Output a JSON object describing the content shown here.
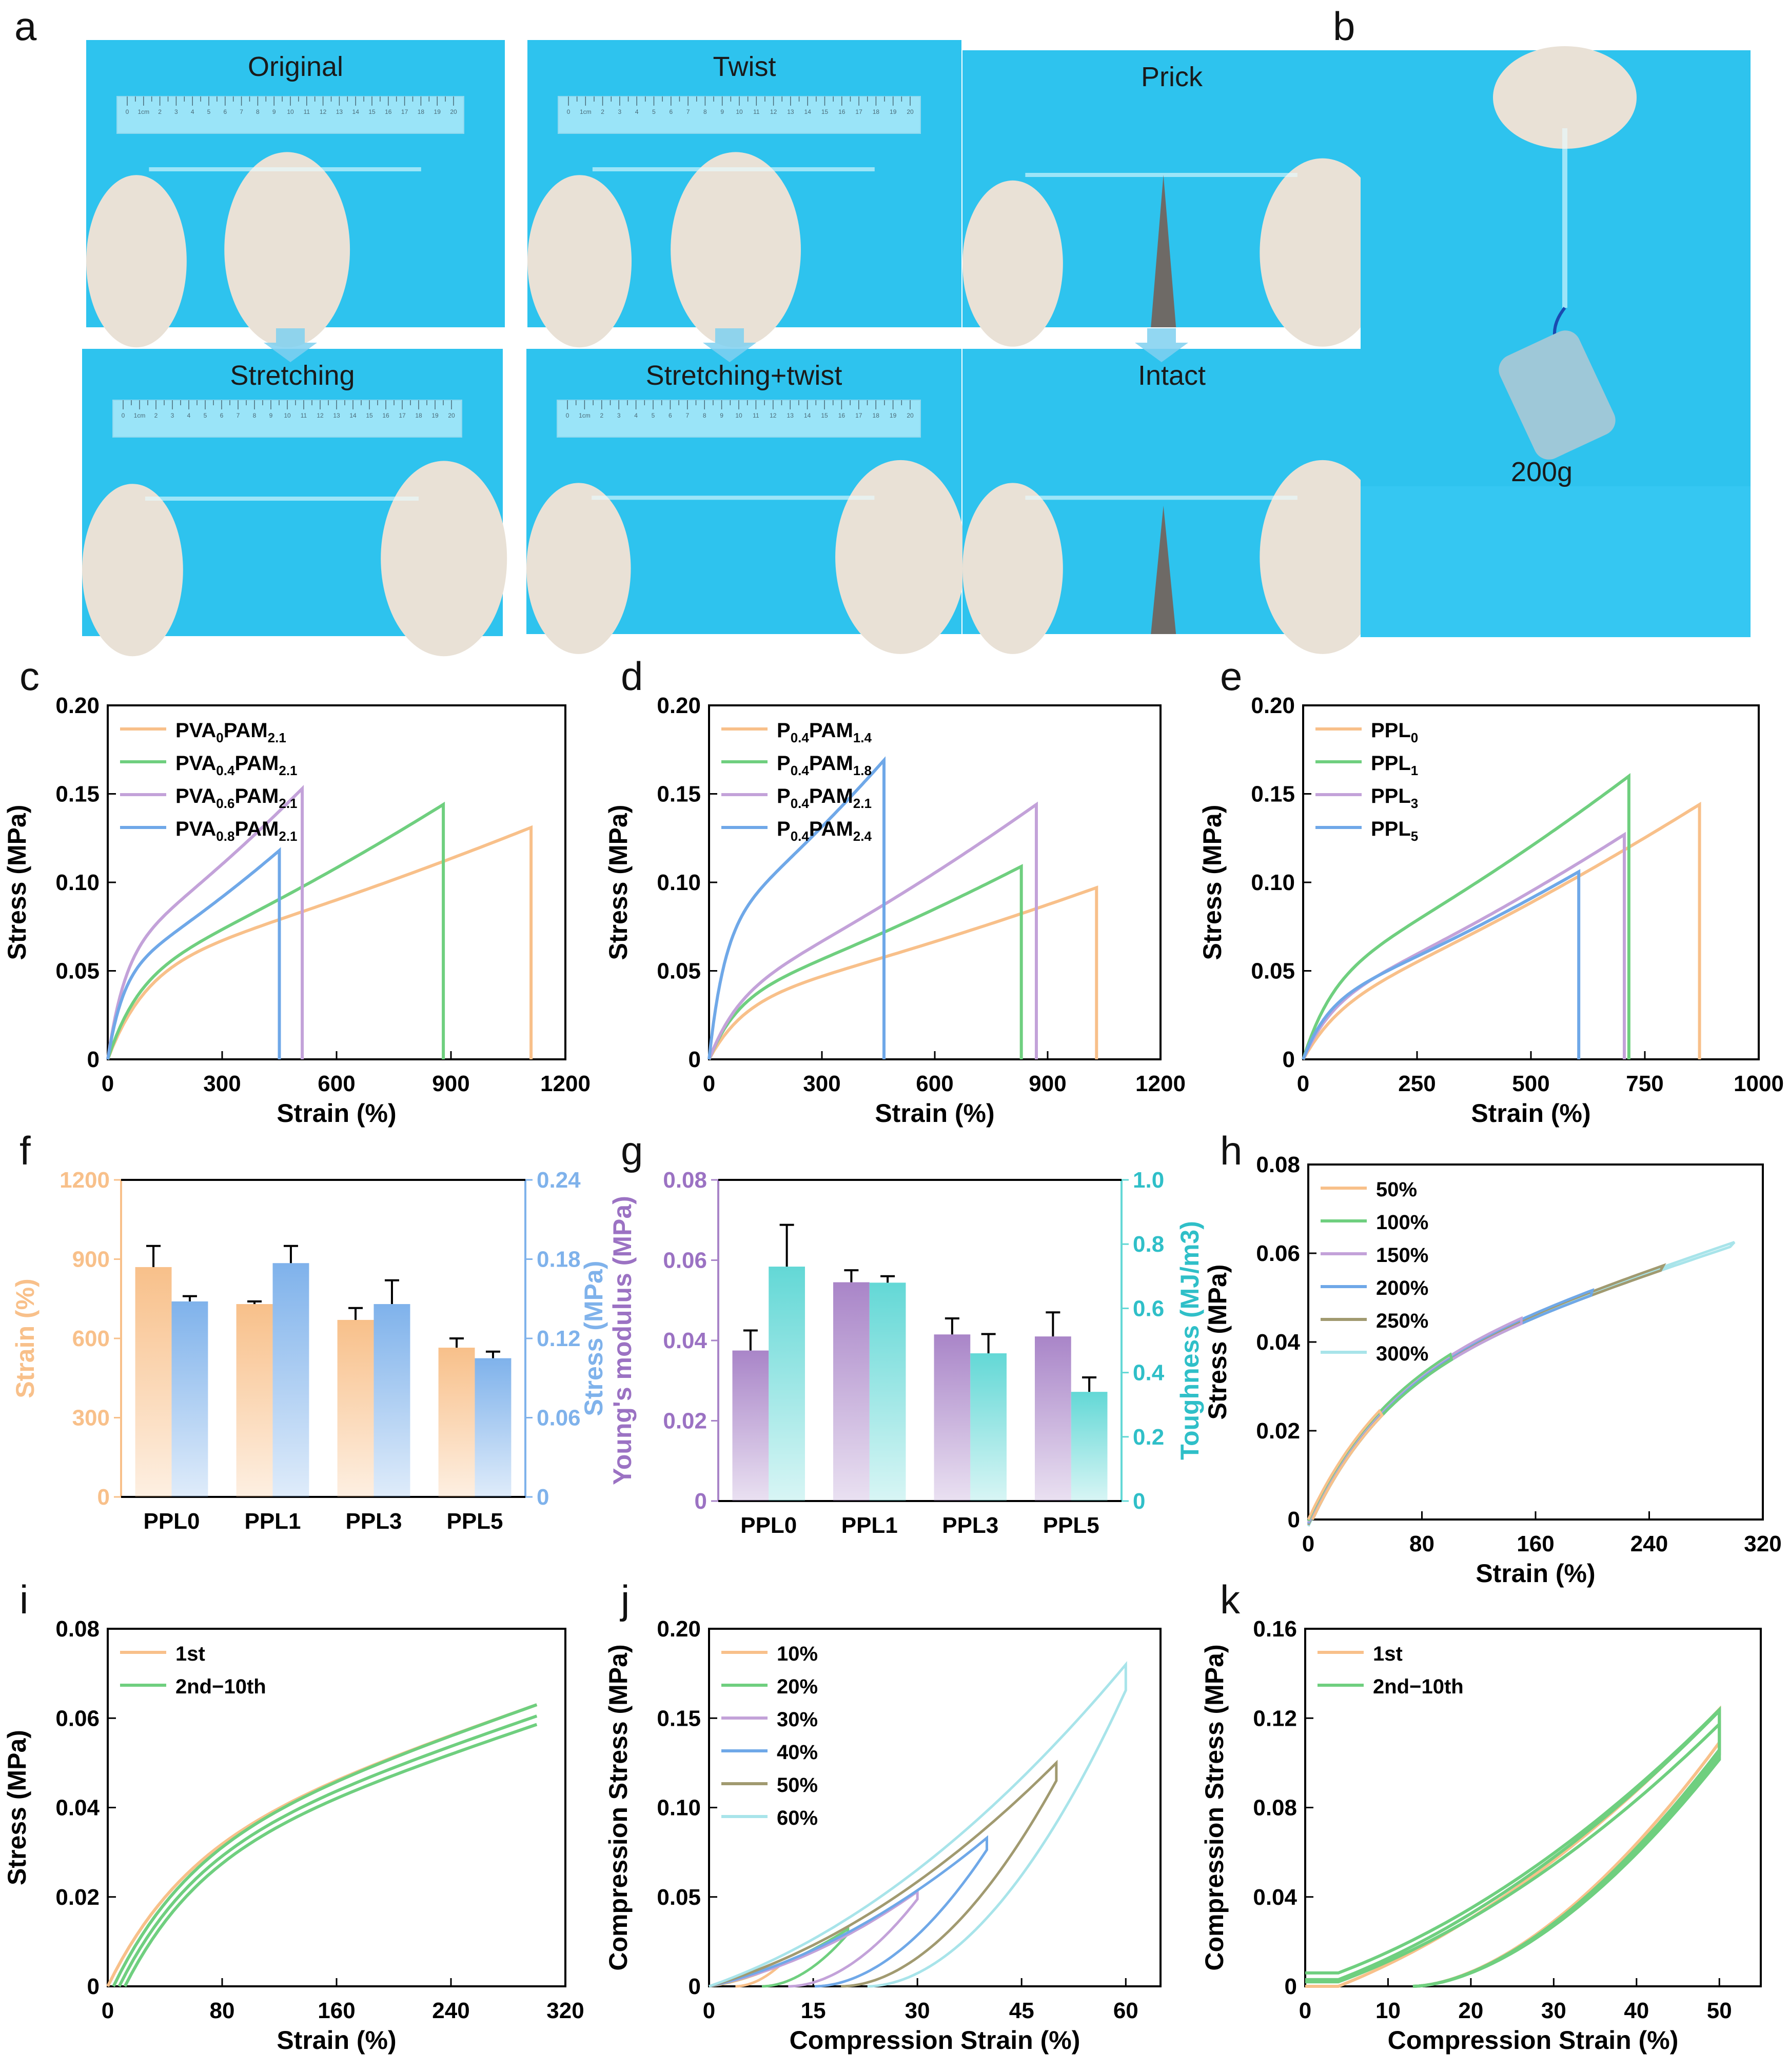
{
  "photos": {
    "label_a": "a",
    "label_b": "b",
    "captions": [
      "Original",
      "Twist",
      "Prick",
      "Stretching",
      "Stretching+twist",
      "Intact"
    ],
    "weight_label": "200g",
    "ruler_numbers": [
      "0",
      "1cm",
      "2",
      "3",
      "4",
      "5",
      "6",
      "7",
      "8",
      "9",
      "10",
      "11",
      "12",
      "13",
      "14",
      "15",
      "16",
      "17",
      "18",
      "19",
      "20"
    ]
  },
  "colors": {
    "orange": "#F8C08A",
    "green": "#6FCF7F",
    "purple": "#C3A2D9",
    "blue": "#6FA8E8",
    "olive": "#A19A70",
    "cyan": "#A8E4EA",
    "bg_blue": "#2EC3EE",
    "glove": "#E9E1D6"
  },
  "chart_data": [
    {
      "id": "c",
      "panel": "c",
      "type": "line",
      "xlabel": "Strain (%)",
      "ylabel": "Stress (MPa)",
      "xlim": [
        0,
        1200
      ],
      "ylim": [
        0,
        0.2
      ],
      "xticks": [
        0,
        300,
        600,
        900,
        1200
      ],
      "yticks": [
        0,
        0.05,
        0.1,
        0.15,
        0.2
      ],
      "ytick_labels": [
        "0",
        "0.05",
        "0.10",
        "0.15",
        "0.20"
      ],
      "legend_position": "top-left",
      "series": [
        {
          "name": "PVA0PAM2.1",
          "legend": [
            "PVA",
            "0",
            "PAM",
            "2.1"
          ],
          "color": "orange",
          "break_strain": 1110,
          "break_stress": 0.131,
          "knee": 0.055
        },
        {
          "name": "PVA0.4PAM2.1",
          "legend": [
            "PVA",
            "0.4",
            "PAM",
            "2.1"
          ],
          "color": "green",
          "break_strain": 880,
          "break_stress": 0.144,
          "knee": 0.05
        },
        {
          "name": "PVA0.6PAM2.1",
          "legend": [
            "PVA",
            "0.6",
            "PAM",
            "2.1"
          ],
          "color": "purple",
          "break_strain": 510,
          "break_stress": 0.153,
          "knee": 0.065
        },
        {
          "name": "PVA0.8PAM2.1",
          "legend": [
            "PVA",
            "0.8",
            "PAM",
            "2.1"
          ],
          "color": "blue",
          "break_strain": 450,
          "break_stress": 0.118,
          "knee": 0.052
        }
      ]
    },
    {
      "id": "d",
      "panel": "d",
      "type": "line",
      "xlabel": "Strain (%)",
      "ylabel": "Stress (MPa)",
      "xlim": [
        0,
        1200
      ],
      "ylim": [
        0,
        0.2
      ],
      "xticks": [
        0,
        300,
        600,
        900,
        1200
      ],
      "yticks": [
        0,
        0.05,
        0.1,
        0.15,
        0.2
      ],
      "ytick_labels": [
        "0",
        "0.05",
        "0.10",
        "0.15",
        "0.20"
      ],
      "legend_position": "top-left",
      "series": [
        {
          "name": "P0.4PAM1.4",
          "legend": [
            "P",
            "0.4",
            "PAM",
            "1.4"
          ],
          "color": "orange",
          "break_strain": 1030,
          "break_stress": 0.097,
          "knee": 0.035
        },
        {
          "name": "P0.4PAM1.8",
          "legend": [
            "P",
            "0.4",
            "PAM",
            "1.8"
          ],
          "color": "green",
          "break_strain": 830,
          "break_stress": 0.109,
          "knee": 0.037
        },
        {
          "name": "P0.4PAM2.1",
          "legend": [
            "P",
            "0.4",
            "PAM",
            "2.1"
          ],
          "color": "purple",
          "break_strain": 870,
          "break_stress": 0.144,
          "knee": 0.04
        },
        {
          "name": "P0.4PAM2.4",
          "legend": [
            "P",
            "0.4",
            "PAM",
            "2.4"
          ],
          "color": "blue",
          "break_strain": 465,
          "break_stress": 0.169,
          "knee": 0.08
        }
      ]
    },
    {
      "id": "e",
      "panel": "e",
      "type": "line",
      "xlabel": "Strain (%)",
      "ylabel": "Stress (MPa)",
      "xlim": [
        0,
        1000
      ],
      "ylim": [
        0,
        0.2
      ],
      "xticks": [
        0,
        250,
        500,
        750,
        1000
      ],
      "yticks": [
        0,
        0.05,
        0.1,
        0.15,
        0.2
      ],
      "ytick_labels": [
        "0",
        "0.05",
        "0.10",
        "0.15",
        "0.20"
      ],
      "legend_position": "top-left",
      "series": [
        {
          "name": "PPL0",
          "legend": [
            "PPL",
            "0",
            "",
            ""
          ],
          "color": "orange",
          "break_strain": 870,
          "break_stress": 0.144,
          "knee": 0.033
        },
        {
          "name": "PPL1",
          "legend": [
            "PPL",
            "1",
            "",
            ""
          ],
          "color": "green",
          "break_strain": 715,
          "break_stress": 0.16,
          "knee": 0.05
        },
        {
          "name": "PPL3",
          "legend": [
            "PPL",
            "3",
            "",
            ""
          ],
          "color": "purple",
          "break_strain": 705,
          "break_stress": 0.127,
          "knee": 0.035
        },
        {
          "name": "PPL5",
          "legend": [
            "PPL",
            "5",
            "",
            ""
          ],
          "color": "blue",
          "break_strain": 605,
          "break_stress": 0.106,
          "knee": 0.035
        }
      ]
    },
    {
      "id": "f",
      "panel": "f",
      "type": "bar",
      "categories": [
        "PPL0",
        "PPL1",
        "PPL3",
        "PPL5"
      ],
      "ylabel": "Strain (%)",
      "y2label": "Stress (MPa)",
      "ylim": [
        0,
        1200
      ],
      "y2lim": [
        0,
        0.24
      ],
      "yticks": [
        0,
        300,
        600,
        900,
        1200
      ],
      "y2ticks": [
        0,
        0.06,
        0.12,
        0.18,
        0.24
      ],
      "ytick_labels": [
        "0",
        "300",
        "600",
        "900",
        "1200"
      ],
      "y2tick_labels": [
        "0",
        "0.06",
        "0.12",
        "0.18",
        "0.24"
      ],
      "left_color": "#F8C08A",
      "right_color": "#7FB2EB",
      "series": [
        {
          "name": "Strain",
          "axis": "left",
          "values": [
            870,
            730,
            670,
            565
          ],
          "errors": [
            80,
            10,
            45,
            35
          ]
        },
        {
          "name": "Stress",
          "axis": "right",
          "values": [
            0.148,
            0.177,
            0.146,
            0.105
          ],
          "errors": [
            0.004,
            0.013,
            0.018,
            0.005
          ]
        }
      ]
    },
    {
      "id": "g",
      "panel": "g",
      "type": "bar",
      "categories": [
        "PPL0",
        "PPL1",
        "PPL3",
        "PPL5"
      ],
      "ylabel": "Young's modulus (MPa)",
      "y2label": "Toughness (MJ/m3)",
      "ylim": [
        0,
        0.08
      ],
      "y2lim": [
        0,
        1.0
      ],
      "yticks": [
        0,
        0.02,
        0.04,
        0.06,
        0.08
      ],
      "y2ticks": [
        0,
        0.2,
        0.4,
        0.6,
        0.8,
        1.0
      ],
      "ytick_labels": [
        "0",
        "0.02",
        "0.04",
        "0.06",
        "0.08"
      ],
      "y2tick_labels": [
        "0",
        "0.2",
        "0.4",
        "0.6",
        "0.8",
        "1.0"
      ],
      "left_color": "#A985C8",
      "right_color": "#63D8D6",
      "left_label_color": "#9B72C3",
      "right_label_color": "#2FBFC8",
      "series": [
        {
          "name": "Young's modulus",
          "axis": "left",
          "values": [
            0.0375,
            0.0545,
            0.0415,
            0.041
          ],
          "errors": [
            0.005,
            0.003,
            0.004,
            0.006
          ]
        },
        {
          "name": "Toughness",
          "axis": "right",
          "values": [
            0.73,
            0.68,
            0.46,
            0.34
          ],
          "errors": [
            0.13,
            0.02,
            0.06,
            0.045
          ]
        }
      ]
    },
    {
      "id": "h",
      "panel": "h",
      "type": "line",
      "xlabel": "Strain (%)",
      "ylabel": "Stress (MPa)",
      "xlim": [
        0,
        320
      ],
      "ylim": [
        0,
        0.08
      ],
      "xticks": [
        0,
        80,
        160,
        240,
        320
      ],
      "yticks": [
        0,
        0.02,
        0.04,
        0.06,
        0.08
      ],
      "ytick_labels": [
        "0",
        "0.02",
        "0.04",
        "0.06",
        "0.08"
      ],
      "legend_position": "top-left",
      "series": [
        {
          "name": "50%",
          "color": "orange",
          "max_strain": 50
        },
        {
          "name": "100%",
          "color": "green",
          "max_strain": 100
        },
        {
          "name": "150%",
          "color": "purple",
          "max_strain": 150
        },
        {
          "name": "200%",
          "color": "blue",
          "max_strain": 200
        },
        {
          "name": "250%",
          "color": "olive",
          "max_strain": 250
        },
        {
          "name": "300%",
          "color": "cyan",
          "max_strain": 300
        }
      ],
      "end_stress": 0.064
    },
    {
      "id": "i",
      "panel": "i",
      "type": "line",
      "xlabel": "Strain (%)",
      "ylabel": "Stress (MPa)",
      "xlim": [
        0,
        320
      ],
      "ylim": [
        0,
        0.08
      ],
      "xticks": [
        0,
        80,
        160,
        240,
        320
      ],
      "yticks": [
        0,
        0.02,
        0.04,
        0.06,
        0.08
      ],
      "ytick_labels": [
        "0",
        "0.02",
        "0.04",
        "0.06",
        "0.08"
      ],
      "legend_position": "top-left",
      "series": [
        {
          "name": "1st",
          "color": "orange"
        },
        {
          "name": "2nd−10th",
          "color": "green"
        }
      ],
      "max_strain": 300,
      "end_stress": 0.063
    },
    {
      "id": "j",
      "panel": "j",
      "type": "line",
      "xlabel": "Compression Strain (%)",
      "ylabel": "Compression Stress (MPa)",
      "xlim": [
        0,
        65
      ],
      "ylim": [
        0,
        0.2
      ],
      "xticks": [
        0,
        15,
        30,
        45,
        60
      ],
      "yticks": [
        0,
        0.05,
        0.1,
        0.15,
        0.2
      ],
      "ytick_labels": [
        "0",
        "0.05",
        "0.10",
        "0.15",
        "0.20"
      ],
      "legend_position": "top-left",
      "series": [
        {
          "name": "10%",
          "color": "orange",
          "max_strain": 10,
          "peak_stress": 0.012
        },
        {
          "name": "20%",
          "color": "green",
          "max_strain": 20,
          "peak_stress": 0.032
        },
        {
          "name": "30%",
          "color": "purple",
          "max_strain": 30,
          "peak_stress": 0.053
        },
        {
          "name": "40%",
          "color": "blue",
          "max_strain": 40,
          "peak_stress": 0.083
        },
        {
          "name": "50%",
          "color": "olive",
          "max_strain": 50,
          "peak_stress": 0.125
        },
        {
          "name": "60%",
          "color": "cyan",
          "max_strain": 60,
          "peak_stress": 0.18
        }
      ]
    },
    {
      "id": "k",
      "panel": "k",
      "type": "line",
      "xlabel": "Compression Strain (%)",
      "ylabel": "Compression Stress (MPa)",
      "xlim": [
        0,
        55
      ],
      "ylim": [
        0,
        0.16
      ],
      "xticks": [
        0,
        10,
        20,
        30,
        40,
        50
      ],
      "yticks": [
        0,
        0.04,
        0.08,
        0.12,
        0.16
      ],
      "ytick_labels": [
        "0",
        "0.04",
        "0.08",
        "0.12",
        "0.16"
      ],
      "legend_position": "top-left",
      "series": [
        {
          "name": "1st",
          "color": "orange"
        },
        {
          "name": "2nd−10th",
          "color": "green"
        }
      ],
      "max_strain": 50,
      "peak_stress": 0.124
    }
  ]
}
